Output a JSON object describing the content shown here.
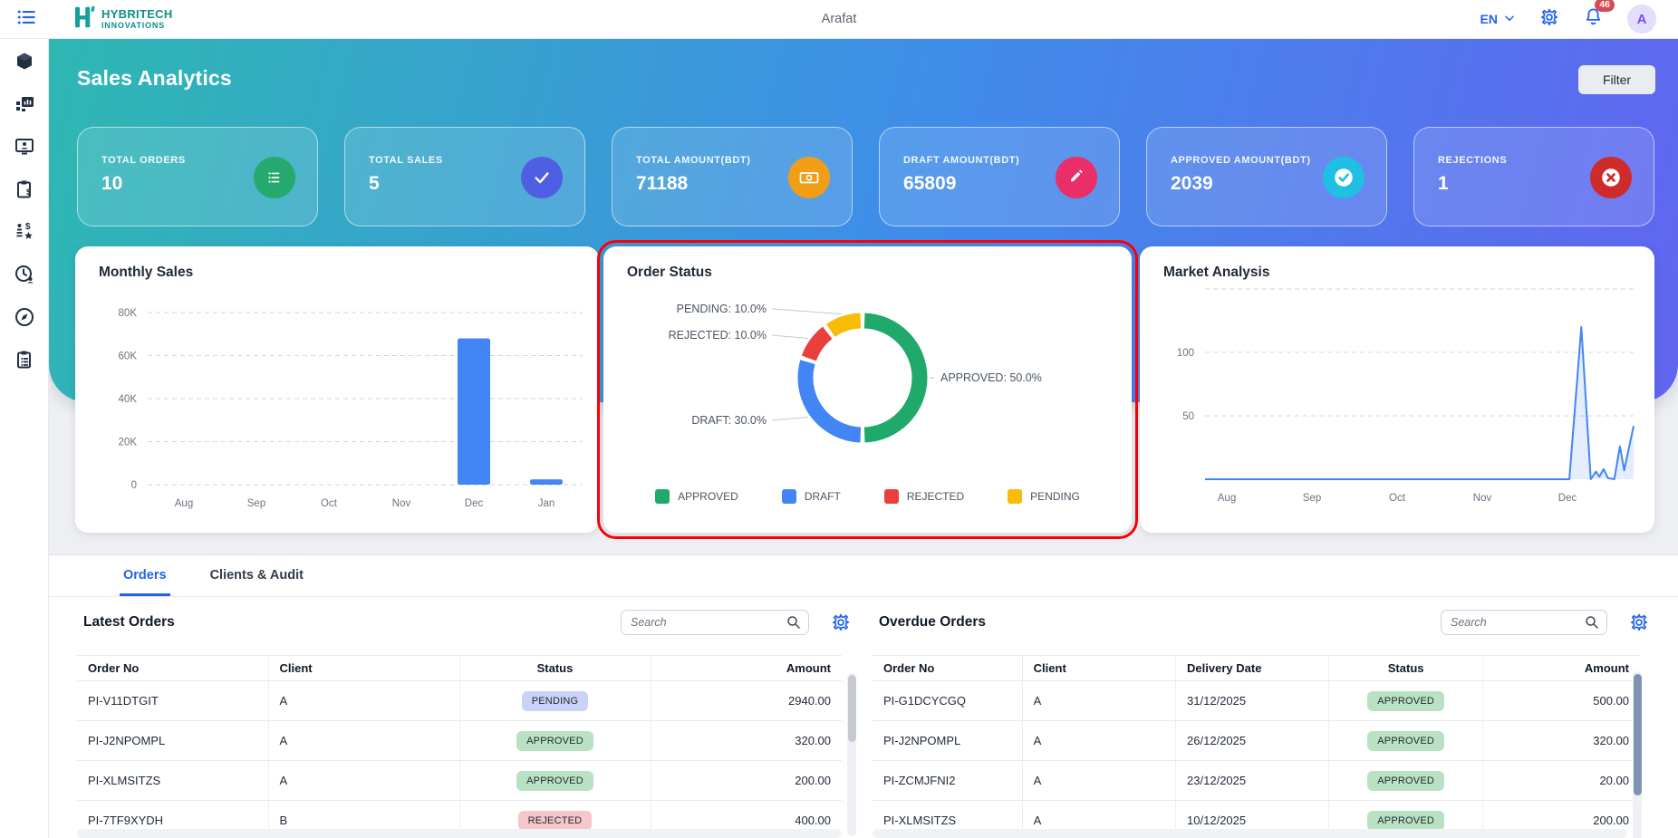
{
  "topbar": {
    "brand_line1": "HYBRITECH",
    "brand_line2": "INNOVATIONS",
    "title": "Arafat",
    "language": "EN",
    "notification_count": "46",
    "avatar_initial": "A"
  },
  "sidebar": {
    "items": [
      {
        "name": "products",
        "icon": "cube-icon"
      },
      {
        "name": "analytics",
        "icon": "chart-board-icon"
      },
      {
        "name": "workstation",
        "icon": "monitor-user-icon"
      },
      {
        "name": "billing",
        "icon": "clipboard-dollar-icon"
      },
      {
        "name": "sales-ranking",
        "icon": "rank-dollar-icon"
      },
      {
        "name": "time-tracking",
        "icon": "clock-user-icon"
      },
      {
        "name": "explore",
        "icon": "compass-icon"
      },
      {
        "name": "audit-log",
        "icon": "clipboard-list-icon"
      }
    ]
  },
  "hero": {
    "title": "Sales Analytics",
    "filter_label": "Filter",
    "stats": [
      {
        "label": "TOTAL ORDERS",
        "value": "10",
        "icon": "list-icon",
        "color": "#25a96e"
      },
      {
        "label": "TOTAL SALES",
        "value": "5",
        "icon": "check-icon",
        "color": "#4f5fe4"
      },
      {
        "label": "TOTAL AMOUNT(BDT)",
        "value": "71188",
        "icon": "cash-icon",
        "color": "#f29d17"
      },
      {
        "label": "DRAFT AMOUNT(BDT)",
        "value": "65809",
        "icon": "pencil-icon",
        "color": "#ea2e68"
      },
      {
        "label": "APPROVED AMOUNT(BDT)",
        "value": "2039",
        "icon": "check-circle-icon",
        "color": "#1fc0e4"
      },
      {
        "label": "REJECTIONS",
        "value": "1",
        "icon": "x-circle-icon",
        "color": "#cf2b2b"
      }
    ]
  },
  "chart_data": [
    {
      "type": "bar",
      "title": "Monthly Sales",
      "categories": [
        "Aug",
        "Sep",
        "Oct",
        "Nov",
        "Dec",
        "Jan"
      ],
      "values": [
        0,
        0,
        0,
        0,
        68000,
        2500
      ],
      "y_ticks": [
        {
          "value": 0,
          "label": "0"
        },
        {
          "value": 20000,
          "label": "20K"
        },
        {
          "value": 40000,
          "label": "40K"
        },
        {
          "value": 60000,
          "label": "60K"
        },
        {
          "value": 80000,
          "label": "80K"
        }
      ],
      "ylim": [
        0,
        86000
      ],
      "bar_color": "#4285F4",
      "grid": "dashed"
    },
    {
      "type": "pie",
      "title": "Order Status",
      "donut": true,
      "slices": [
        {
          "label": "APPROVED",
          "value": 50.0,
          "color": "#1fa96b"
        },
        {
          "label": "DRAFT",
          "value": 30.0,
          "color": "#4285F4"
        },
        {
          "label": "REJECTED",
          "value": 10.0,
          "color": "#e8413d"
        },
        {
          "label": "PENDING",
          "value": 10.0,
          "color": "#f8bb06"
        }
      ],
      "legend": [
        "APPROVED",
        "DRAFT",
        "REJECTED",
        "PENDING"
      ],
      "legend_position": "bottom"
    },
    {
      "type": "line",
      "title": "Market Analysis",
      "x_labels": [
        "Aug",
        "Sep",
        "Oct",
        "Nov",
        "Dec"
      ],
      "points": [
        [
          0,
          0
        ],
        [
          0.2,
          0
        ],
        [
          0.4,
          0
        ],
        [
          0.6,
          0
        ],
        [
          0.85,
          0
        ],
        [
          0.878,
          120
        ],
        [
          0.9,
          0
        ],
        [
          0.912,
          6
        ],
        [
          0.92,
          2
        ],
        [
          0.93,
          8
        ],
        [
          0.94,
          1
        ],
        [
          0.955,
          0
        ],
        [
          0.968,
          26
        ],
        [
          0.978,
          7
        ],
        [
          1,
          42
        ]
      ],
      "y_ticks": [
        {
          "value": 50,
          "label": "50"
        },
        {
          "value": 100,
          "label": "100"
        },
        {
          "value": 150,
          "label": ""
        }
      ],
      "ylim": [
        0,
        157
      ],
      "line_color": "#4285F4",
      "grid": "dashed"
    }
  ],
  "tabs": [
    {
      "label": "Orders",
      "active": true
    },
    {
      "label": "Clients & Audit",
      "active": false
    }
  ],
  "latest_orders": {
    "title": "Latest Orders",
    "search_placeholder": "Search",
    "columns": [
      "Order No",
      "Client",
      "Status",
      "Amount"
    ],
    "rows": [
      {
        "order_no": "PI-V11DTGIT",
        "client": "A",
        "status": "PENDING",
        "amount": "2940.00"
      },
      {
        "order_no": "PI-J2NPOMPL",
        "client": "A",
        "status": "APPROVED",
        "amount": "320.00"
      },
      {
        "order_no": "PI-XLMSITZS",
        "client": "A",
        "status": "APPROVED",
        "amount": "200.00"
      },
      {
        "order_no": "PI-7TF9XYDH",
        "client": "B",
        "status": "REJECTED",
        "amount": "400.00"
      }
    ]
  },
  "overdue_orders": {
    "title": "Overdue Orders",
    "search_placeholder": "Search",
    "columns": [
      "Order No",
      "Client",
      "Delivery Date",
      "Status",
      "Amount"
    ],
    "rows": [
      {
        "order_no": "PI-G1DCYCGQ",
        "client": "A",
        "delivery_date": "31/12/2025",
        "status": "APPROVED",
        "amount": "500.00"
      },
      {
        "order_no": "PI-J2NPOMPL",
        "client": "A",
        "delivery_date": "26/12/2025",
        "status": "APPROVED",
        "amount": "320.00"
      },
      {
        "order_no": "PI-ZCMJFNI2",
        "client": "A",
        "delivery_date": "23/12/2025",
        "status": "APPROVED",
        "amount": "20.00"
      },
      {
        "order_no": "PI-XLMSITZS",
        "client": "A",
        "delivery_date": "10/12/2025",
        "status": "APPROVED",
        "amount": "200.00"
      }
    ]
  },
  "colors": {
    "accent_blue": "#2563eb",
    "brand_teal": "#0e8f89",
    "gradient_start": "#2eb8b2",
    "gradient_mid": "#3f8de9",
    "gradient_end": "#6165f0",
    "highlight_red": "#fb0007",
    "chart_blue": "#4285F4",
    "badge_PENDING": "#c9d3f8",
    "badge_APPROVED": "#b9e2c4",
    "badge_REJECTED": "#f6c7ca",
    "notification_red": "#d64b52",
    "sidebar_icon": "#233042"
  }
}
